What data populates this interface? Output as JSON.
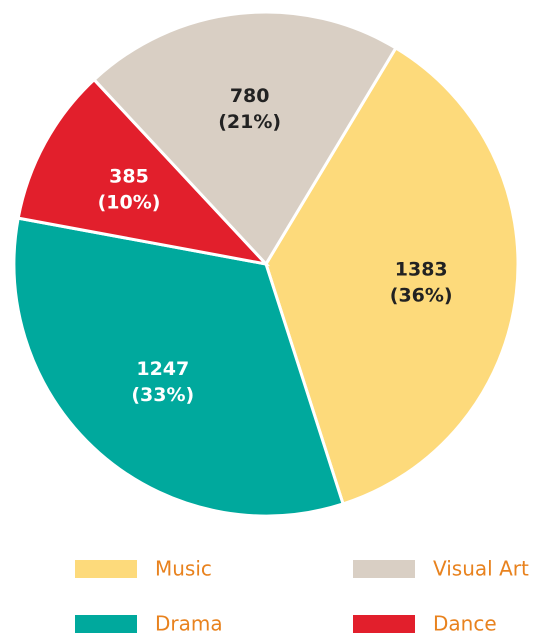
{
  "chart_data": {
    "type": "pie",
    "categories": [
      "Music",
      "Drama",
      "Dance",
      "Visual Art"
    ],
    "values": [
      1383,
      1247,
      385,
      780
    ],
    "value_labels": [
      [
        "1383",
        "(36%)"
      ],
      [
        "1247",
        "(33%)"
      ],
      [
        "385",
        "(10%)"
      ],
      [
        "780",
        "(21%)"
      ]
    ],
    "colors": [
      "#fdda7b",
      "#00a99d",
      "#e21f2c",
      "#d9cfc4"
    ],
    "legend": "bottom"
  }
}
